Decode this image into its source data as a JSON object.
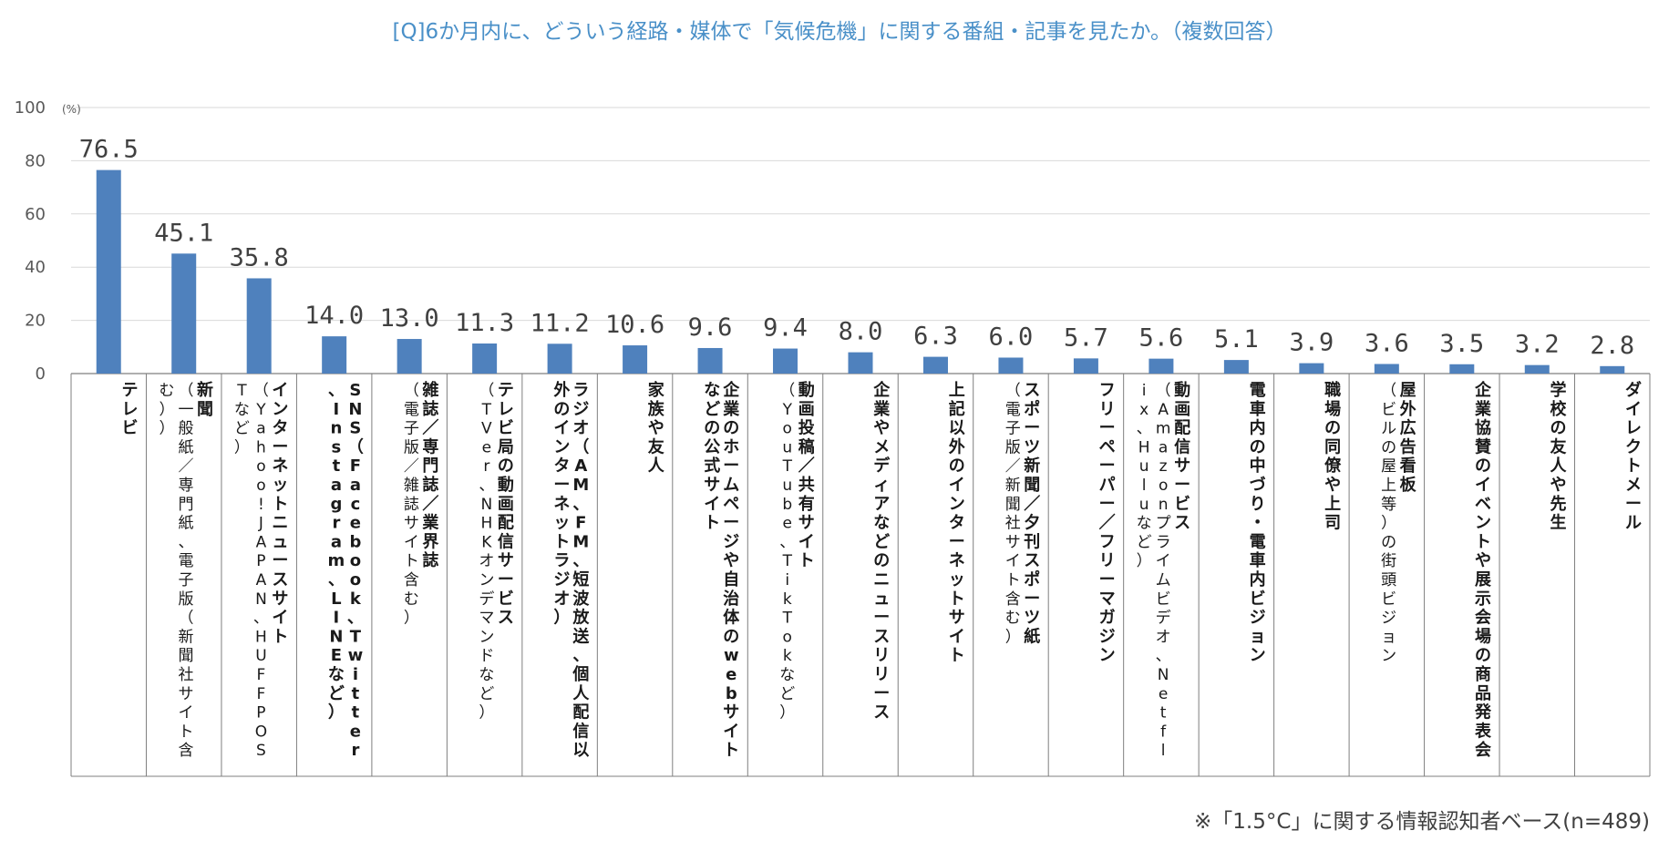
{
  "chart_data": {
    "type": "bar",
    "title": "[Q]6か月内に、どういう経路・媒体で「気候危機」に関する番組・記事を見たか。（複数回答）",
    "unit": "(%)",
    "ylim": [
      0,
      100
    ],
    "yticks": [
      "0",
      "20",
      "40",
      "60",
      "80",
      "100"
    ],
    "grid": true,
    "bar_color": "#4f81bd",
    "categories": [
      {
        "main": "テレビ",
        "sub": ""
      },
      {
        "main": "新聞",
        "sub": "（一般紙／専門紙、電子版（新聞社サイト含む））"
      },
      {
        "main": "インターネットニュースサイト",
        "sub": "（Yahoo!JAPAN、HUFFPOSTなど）"
      },
      {
        "main": "SNS（Facebook、Twitter、Instagram、LINEなど）",
        "sub": ""
      },
      {
        "main": "雑誌／専門誌／業界誌",
        "sub": "（電子版／雑誌サイト含む）"
      },
      {
        "main": "テレビ局の動画配信サービス",
        "sub": "（TVer、NHKオンデマンドなど）"
      },
      {
        "main": "ラジオ（AM、FM、短波放送、個人配信以外のインターネットラジオ）",
        "sub": ""
      },
      {
        "main": "家族や友人",
        "sub": ""
      },
      {
        "main": "企業のホームページや自治体のwebサイトなどの公式サイト",
        "sub": ""
      },
      {
        "main": "動画投稿／共有サイト",
        "sub": "（YouTube、TikTokなど）"
      },
      {
        "main": "企業やメディアなどのニュースリリース",
        "sub": ""
      },
      {
        "main": "上記以外のインターネットサイト",
        "sub": ""
      },
      {
        "main": "スポーツ新聞／夕刊スポーツ紙",
        "sub": "（電子版／新聞社サイト含む）"
      },
      {
        "main": "フリーペーパー／フリーマガジン",
        "sub": ""
      },
      {
        "main": "動画配信サービス",
        "sub": "（Amazonプライムビデオ、Netflix、Huluなど）"
      },
      {
        "main": "電車内の中づり・電車内ビジョン",
        "sub": ""
      },
      {
        "main": "職場の同僚や上司",
        "sub": ""
      },
      {
        "main": "屋外広告看板",
        "sub": "（ビルの屋上等）の街頭ビジョン"
      },
      {
        "main": "企業協賛のイベントや展示会場の商品発表会",
        "sub": ""
      },
      {
        "main": "学校の友人や先生",
        "sub": ""
      },
      {
        "main": "ダイレクトメール",
        "sub": ""
      }
    ],
    "values": [
      76.5,
      45.1,
      35.8,
      14.0,
      13.0,
      11.3,
      11.2,
      10.6,
      9.6,
      9.4,
      8.0,
      6.3,
      6.0,
      5.7,
      5.6,
      5.1,
      3.9,
      3.6,
      3.5,
      3.2,
      2.8
    ],
    "value_labels": [
      "76.5",
      "45.1",
      "35.8",
      "14.0",
      "13.0",
      "11.3",
      "11.2",
      "10.6",
      "9.6",
      "9.4",
      "8.0",
      "6.3",
      "6.0",
      "5.7",
      "5.6",
      "5.1",
      "3.9",
      "3.6",
      "3.5",
      "3.2",
      "2.8"
    ]
  },
  "footnote": "※「1.5°C」に関する情報認知者ベース(n=489)"
}
